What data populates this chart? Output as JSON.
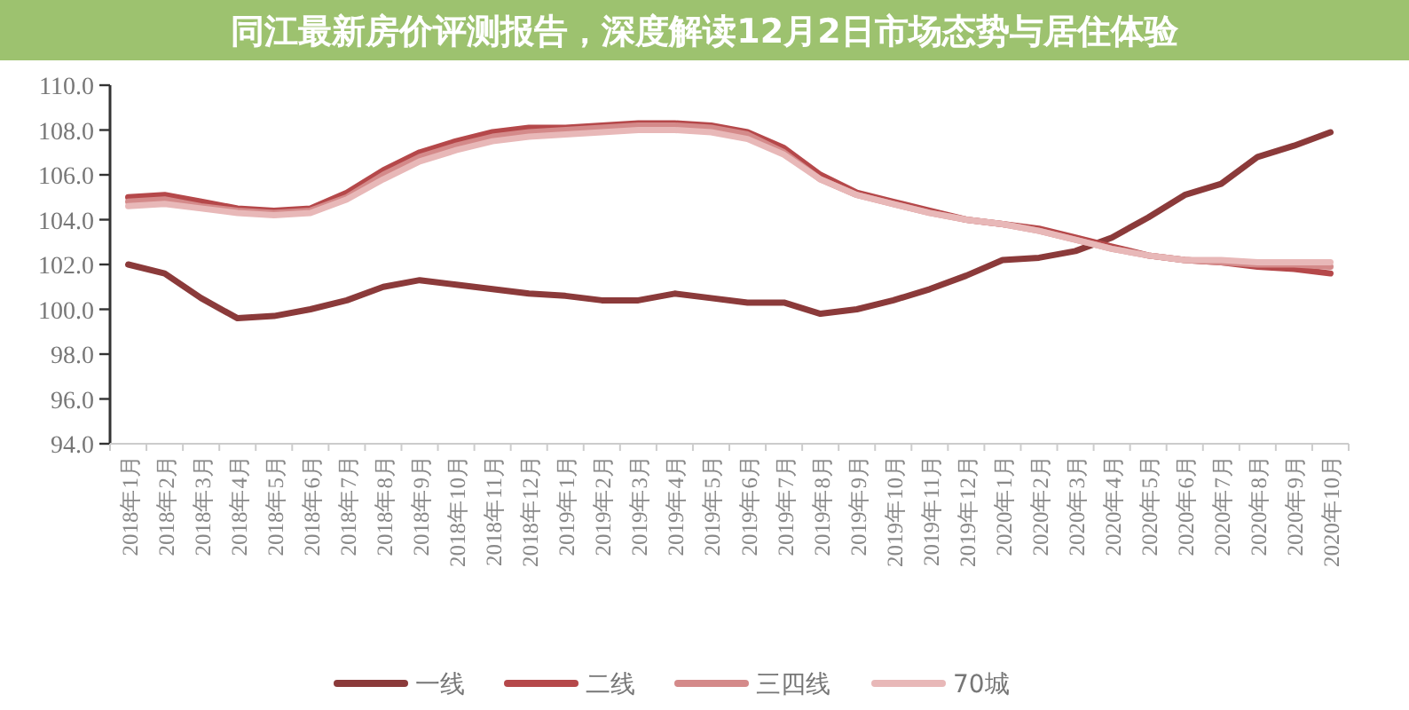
{
  "chart_data": {
    "type": "line",
    "title": "同江最新房价评测报告，深度解读12月2日市场态势与居住体验",
    "categories": [
      "2018年1月",
      "2018年2月",
      "2018年3月",
      "2018年4月",
      "2018年5月",
      "2018年6月",
      "2018年7月",
      "2018年8月",
      "2018年9月",
      "2018年10月",
      "2018年11月",
      "2018年12月",
      "2019年1月",
      "2019年2月",
      "2019年3月",
      "2019年4月",
      "2019年5月",
      "2019年6月",
      "2019年7月",
      "2019年8月",
      "2019年9月",
      "2019年10月",
      "2019年11月",
      "2019年12月",
      "2020年1月",
      "2020年2月",
      "2020年3月",
      "2020年4月",
      "2020年5月",
      "2020年6月",
      "2020年7月",
      "2020年8月",
      "2020年9月",
      "2020年10月"
    ],
    "series": [
      {
        "name": "一线",
        "color": "#8b3a3a",
        "values": [
          102.0,
          101.6,
          100.5,
          99.6,
          99.7,
          100.0,
          100.4,
          101.0,
          101.3,
          101.1,
          100.9,
          100.7,
          100.6,
          100.4,
          100.4,
          100.7,
          100.5,
          100.3,
          100.3,
          99.8,
          100.0,
          100.4,
          100.9,
          101.5,
          102.2,
          102.3,
          102.6,
          103.2,
          104.1,
          105.1,
          105.6,
          106.8,
          107.3,
          107.9
        ]
      },
      {
        "name": "二线",
        "color": "#b5484a",
        "values": [
          105.0,
          105.1,
          104.8,
          104.5,
          104.4,
          104.5,
          105.2,
          106.2,
          107.0,
          107.5,
          107.9,
          108.1,
          108.1,
          108.2,
          108.3,
          108.3,
          108.2,
          107.9,
          107.2,
          106.0,
          105.2,
          104.8,
          104.4,
          104.0,
          103.8,
          103.6,
          103.2,
          102.8,
          102.4,
          102.2,
          102.1,
          101.9,
          101.8,
          101.6
        ]
      },
      {
        "name": "三四线",
        "color": "#d48a8a",
        "values": [
          104.8,
          104.9,
          104.6,
          104.4,
          104.3,
          104.4,
          105.0,
          106.0,
          106.8,
          107.3,
          107.7,
          107.9,
          108.0,
          108.1,
          108.2,
          108.2,
          108.1,
          107.8,
          107.0,
          105.8,
          105.1,
          104.7,
          104.3,
          104.0,
          103.8,
          103.5,
          103.1,
          102.7,
          102.4,
          102.2,
          102.1,
          102.0,
          102.0,
          101.9
        ]
      },
      {
        "name": "70城",
        "color": "#e8b8b8",
        "values": [
          104.6,
          104.7,
          104.5,
          104.3,
          104.2,
          104.3,
          104.9,
          105.8,
          106.6,
          107.1,
          107.5,
          107.7,
          107.8,
          107.9,
          108.0,
          108.0,
          107.9,
          107.6,
          106.9,
          105.8,
          105.1,
          104.7,
          104.3,
          104.0,
          103.8,
          103.5,
          103.1,
          102.7,
          102.4,
          102.2,
          102.2,
          102.1,
          102.1,
          102.1
        ]
      }
    ],
    "ylim": [
      94,
      110
    ],
    "yticks": [
      {
        "value": 94,
        "label": "94.0"
      },
      {
        "value": 96,
        "label": "96.0"
      },
      {
        "value": 98,
        "label": "98.0"
      },
      {
        "value": 100,
        "label": "100.0"
      },
      {
        "value": 102,
        "label": "102.0"
      },
      {
        "value": 104,
        "label": "104.0"
      },
      {
        "value": 106,
        "label": "106.0"
      },
      {
        "value": 108,
        "label": "108.0"
      },
      {
        "value": 110,
        "label": "110.0"
      }
    ],
    "legend": "bottom",
    "grid": false,
    "marker": "none",
    "line_style": "solid"
  }
}
